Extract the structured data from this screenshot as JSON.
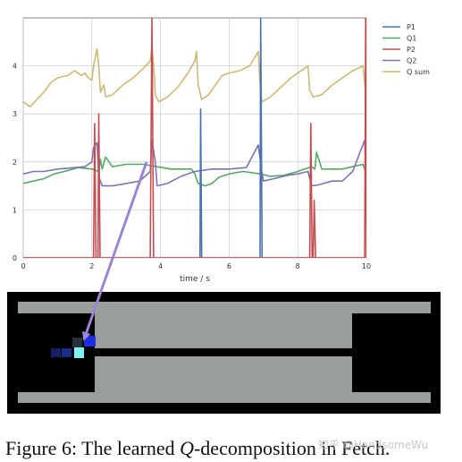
{
  "figure": {
    "caption_prefix": "Figure 6: The learned ",
    "caption_var": "Q",
    "caption_suffix": "-decomposition in Fetch.",
    "watermark": "知乎 @HandsomeWu"
  },
  "colors": {
    "P1": "#4a72b0",
    "Q1": "#55a868",
    "P2": "#c44e52",
    "Q2": "#8172b2",
    "Q sum": "#ccb974",
    "arrow": "#9a86d0",
    "env_floor": "#9a9e9a",
    "env_wall": "#000000"
  },
  "chart_data": {
    "type": "line",
    "xlabel": "time / s",
    "ylabel": "",
    "xlim": [
      0,
      10
    ],
    "ylim": [
      0,
      5
    ],
    "xticks": [
      0,
      2,
      4,
      6,
      8,
      10
    ],
    "yticks": [
      0,
      1,
      2,
      3,
      4
    ],
    "grid": true,
    "legend_position": "top-right",
    "series": [
      {
        "name": "P1",
        "points": [
          [
            0,
            0
          ],
          [
            5.15,
            0
          ],
          [
            5.17,
            3.1
          ],
          [
            5.2,
            0
          ],
          [
            6.9,
            0
          ],
          [
            6.92,
            5.0
          ],
          [
            6.96,
            0
          ],
          [
            10,
            0
          ]
        ]
      },
      {
        "name": "Q1",
        "points": [
          [
            0,
            1.55
          ],
          [
            0.3,
            1.6
          ],
          [
            0.6,
            1.65
          ],
          [
            0.9,
            1.75
          ],
          [
            1.2,
            1.8
          ],
          [
            1.6,
            1.88
          ],
          [
            2.0,
            1.85
          ],
          [
            2.2,
            1.8
          ],
          [
            2.25,
            2.05
          ],
          [
            2.3,
            1.85
          ],
          [
            2.4,
            2.1
          ],
          [
            2.6,
            1.9
          ],
          [
            3.0,
            1.95
          ],
          [
            3.5,
            1.95
          ],
          [
            3.9,
            1.9
          ],
          [
            4.3,
            1.85
          ],
          [
            4.9,
            1.85
          ],
          [
            5.0,
            1.75
          ],
          [
            5.1,
            1.55
          ],
          [
            5.3,
            1.5
          ],
          [
            5.5,
            1.55
          ],
          [
            5.7,
            1.68
          ],
          [
            6.0,
            1.75
          ],
          [
            6.4,
            1.8
          ],
          [
            6.9,
            1.75
          ],
          [
            7.2,
            1.7
          ],
          [
            7.6,
            1.72
          ],
          [
            8.0,
            1.8
          ],
          [
            8.2,
            1.85
          ],
          [
            8.4,
            1.9
          ],
          [
            8.5,
            1.85
          ],
          [
            8.55,
            2.2
          ],
          [
            8.7,
            1.85
          ],
          [
            9.0,
            1.85
          ],
          [
            9.3,
            1.85
          ],
          [
            9.6,
            1.9
          ],
          [
            9.9,
            1.95
          ],
          [
            10,
            1.75
          ]
        ]
      },
      {
        "name": "P2",
        "points": [
          [
            0,
            0
          ],
          [
            2.05,
            0
          ],
          [
            2.08,
            2.8
          ],
          [
            2.12,
            0
          ],
          [
            2.18,
            0
          ],
          [
            2.2,
            3.0
          ],
          [
            2.24,
            0
          ],
          [
            3.7,
            0
          ],
          [
            3.75,
            5.0
          ],
          [
            3.8,
            0
          ],
          [
            8.35,
            0
          ],
          [
            8.38,
            2.8
          ],
          [
            8.42,
            0
          ],
          [
            8.45,
            0
          ],
          [
            8.48,
            1.2
          ],
          [
            8.52,
            0
          ],
          [
            9.95,
            0
          ],
          [
            9.98,
            5.0
          ],
          [
            10,
            0
          ]
        ]
      },
      {
        "name": "Q2",
        "points": [
          [
            0,
            1.75
          ],
          [
            0.3,
            1.8
          ],
          [
            0.6,
            1.8
          ],
          [
            1.0,
            1.85
          ],
          [
            1.5,
            1.88
          ],
          [
            1.8,
            1.9
          ],
          [
            2.0,
            2.0
          ],
          [
            2.05,
            2.3
          ],
          [
            2.15,
            2.4
          ],
          [
            2.2,
            1.7
          ],
          [
            2.3,
            1.5
          ],
          [
            2.6,
            1.5
          ],
          [
            3.0,
            1.55
          ],
          [
            3.4,
            1.6
          ],
          [
            3.7,
            1.8
          ],
          [
            3.75,
            2.45
          ],
          [
            3.85,
            2.0
          ],
          [
            3.9,
            1.5
          ],
          [
            4.2,
            1.55
          ],
          [
            4.6,
            1.7
          ],
          [
            5.0,
            1.8
          ],
          [
            5.5,
            1.85
          ],
          [
            6.0,
            1.85
          ],
          [
            6.5,
            1.88
          ],
          [
            6.85,
            2.35
          ],
          [
            6.95,
            1.8
          ],
          [
            7.0,
            1.6
          ],
          [
            7.3,
            1.65
          ],
          [
            7.7,
            1.72
          ],
          [
            8.0,
            1.75
          ],
          [
            8.3,
            1.8
          ],
          [
            8.4,
            1.5
          ],
          [
            8.6,
            1.52
          ],
          [
            9.0,
            1.6
          ],
          [
            9.3,
            1.6
          ],
          [
            9.6,
            1.8
          ],
          [
            9.95,
            2.45
          ],
          [
            10,
            1.5
          ]
        ]
      },
      {
        "name": "Q sum",
        "points": [
          [
            0,
            3.25
          ],
          [
            0.2,
            3.15
          ],
          [
            0.4,
            3.3
          ],
          [
            0.6,
            3.45
          ],
          [
            0.8,
            3.65
          ],
          [
            1.0,
            3.75
          ],
          [
            1.3,
            3.8
          ],
          [
            1.5,
            3.9
          ],
          [
            1.7,
            3.8
          ],
          [
            1.8,
            3.85
          ],
          [
            1.9,
            3.75
          ],
          [
            2.0,
            3.7
          ],
          [
            2.05,
            4.0
          ],
          [
            2.15,
            4.35
          ],
          [
            2.2,
            4.0
          ],
          [
            2.25,
            3.45
          ],
          [
            2.35,
            3.6
          ],
          [
            2.4,
            3.35
          ],
          [
            2.6,
            3.4
          ],
          [
            2.9,
            3.6
          ],
          [
            3.2,
            3.75
          ],
          [
            3.5,
            3.95
          ],
          [
            3.7,
            4.1
          ],
          [
            3.75,
            4.4
          ],
          [
            3.8,
            4.0
          ],
          [
            3.85,
            3.4
          ],
          [
            3.95,
            3.25
          ],
          [
            4.2,
            3.35
          ],
          [
            4.5,
            3.55
          ],
          [
            4.8,
            3.85
          ],
          [
            5.0,
            4.1
          ],
          [
            5.05,
            4.3
          ],
          [
            5.1,
            3.6
          ],
          [
            5.2,
            3.3
          ],
          [
            5.4,
            3.4
          ],
          [
            5.6,
            3.6
          ],
          [
            5.8,
            3.8
          ],
          [
            6.0,
            3.85
          ],
          [
            6.3,
            3.9
          ],
          [
            6.6,
            4.0
          ],
          [
            6.85,
            4.3
          ],
          [
            6.9,
            3.65
          ],
          [
            6.95,
            3.25
          ],
          [
            7.2,
            3.35
          ],
          [
            7.5,
            3.55
          ],
          [
            7.8,
            3.75
          ],
          [
            8.0,
            3.85
          ],
          [
            8.2,
            3.95
          ],
          [
            8.3,
            4.0
          ],
          [
            8.35,
            3.5
          ],
          [
            8.45,
            3.35
          ],
          [
            8.7,
            3.4
          ],
          [
            9.0,
            3.6
          ],
          [
            9.3,
            3.75
          ],
          [
            9.6,
            3.9
          ],
          [
            9.9,
            4.0
          ],
          [
            10,
            3.3
          ]
        ]
      }
    ]
  }
}
